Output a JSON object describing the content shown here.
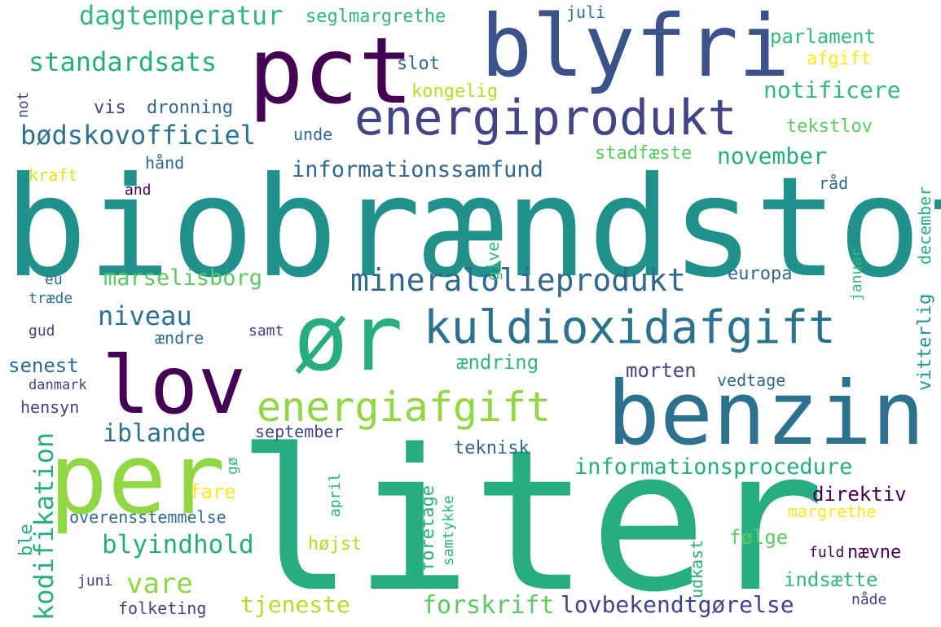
{
  "palette": {
    "dark_purple": "#440154",
    "indigo": "#3b528b",
    "slate_blue": "#414487",
    "steel_blue": "#31688e",
    "teal_blue": "#2c728e",
    "teal": "#21918c",
    "sea_green": "#27ad81",
    "green": "#35b779",
    "light_green": "#5ec962",
    "lime": "#90d743",
    "yellow_green": "#b5de2b",
    "yellow": "#fde725",
    "pale_yellow": "#dde318"
  },
  "words": [
    {
      "text": "biobrændstof"
    },
    {
      "text": "liter"
    },
    {
      "text": "benzin"
    },
    {
      "text": "pct"
    },
    {
      "text": "blyfri"
    },
    {
      "text": "ør"
    },
    {
      "text": "lov"
    },
    {
      "text": "per"
    },
    {
      "text": "energiprodukt"
    },
    {
      "text": "kuldioxidafgift"
    },
    {
      "text": "energiafgift"
    },
    {
      "text": "mineralolieprodukt"
    },
    {
      "text": "informationsprocedure"
    },
    {
      "text": "dagtemperatur"
    },
    {
      "text": "standardsats"
    },
    {
      "text": "bødskovofficiel"
    },
    {
      "text": "informationssamfund"
    },
    {
      "text": "notificere"
    },
    {
      "text": "november"
    },
    {
      "text": "marselisborg"
    },
    {
      "text": "niveau"
    },
    {
      "text": "blyindhold"
    },
    {
      "text": "vare"
    },
    {
      "text": "iblande"
    },
    {
      "text": "kodifikation"
    },
    {
      "text": "forskrift"
    },
    {
      "text": "lovbekendtgørelse"
    },
    {
      "text": "tjeneste"
    },
    {
      "text": "seglmargrethe"
    },
    {
      "text": "juli"
    },
    {
      "text": "parlament"
    },
    {
      "text": "afgift"
    },
    {
      "text": "slot"
    },
    {
      "text": "kongelig"
    },
    {
      "text": "vis"
    },
    {
      "text": "dronning"
    },
    {
      "text": "not"
    },
    {
      "text": "unde"
    },
    {
      "text": "tekstlov"
    },
    {
      "text": "stadfæste"
    },
    {
      "text": "kraft"
    },
    {
      "text": "hånd"
    },
    {
      "text": "and"
    },
    {
      "text": "råd"
    },
    {
      "text": "december"
    },
    {
      "text": "give"
    },
    {
      "text": "januar"
    },
    {
      "text": "europa"
    },
    {
      "text": "eu"
    },
    {
      "text": "træde"
    },
    {
      "text": "gud"
    },
    {
      "text": "ændre"
    },
    {
      "text": "samt"
    },
    {
      "text": "senest"
    },
    {
      "text": "ændring"
    },
    {
      "text": "morten"
    },
    {
      "text": "vitterlig"
    },
    {
      "text": "danmark"
    },
    {
      "text": "vedtage"
    },
    {
      "text": "hensyn"
    },
    {
      "text": "september"
    },
    {
      "text": "teknisk"
    },
    {
      "text": "gø"
    },
    {
      "text": "fare"
    },
    {
      "text": "direktiv"
    },
    {
      "text": "overensstemmelse"
    },
    {
      "text": "april"
    },
    {
      "text": "samtykke"
    },
    {
      "text": "foretage"
    },
    {
      "text": "margrethe"
    },
    {
      "text": "ble"
    },
    {
      "text": "højst"
    },
    {
      "text": "udkast"
    },
    {
      "text": "følge"
    },
    {
      "text": "fuld"
    },
    {
      "text": "nævne"
    },
    {
      "text": "indsætte"
    },
    {
      "text": "juni"
    },
    {
      "text": "folketing"
    },
    {
      "text": "nåde"
    }
  ]
}
